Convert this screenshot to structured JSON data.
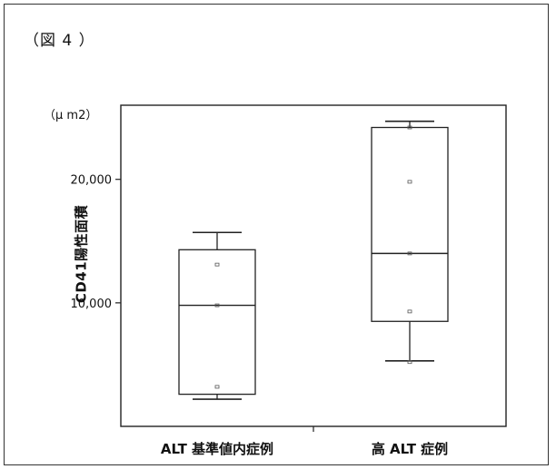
{
  "figure_label": "（図 4 ）",
  "unit_label": "（μ m2）",
  "chart_data": {
    "type": "box",
    "ylabel": "CD41陽性面積",
    "ylim": [
      0,
      26000
    ],
    "yticks": [
      {
        "value": 10000,
        "label": "10,000"
      },
      {
        "value": 20000,
        "label": "20,000"
      }
    ],
    "categories": [
      "ALT 基準値内症例",
      "高 ALT 症例"
    ],
    "boxes": [
      {
        "category": "ALT 基準値内症例",
        "whisker_low": 2200,
        "q1": 2600,
        "median": 9800,
        "q3": 14300,
        "whisker_high": 15700,
        "points": [
          3200,
          9800,
          13100
        ]
      },
      {
        "category": "高 ALT 症例",
        "whisker_low": 5300,
        "q1": 8500,
        "median": 14000,
        "q3": 24200,
        "whisker_high": 24700,
        "points": [
          5200,
          9300,
          14000,
          19800,
          24200
        ]
      }
    ],
    "grid": false
  }
}
